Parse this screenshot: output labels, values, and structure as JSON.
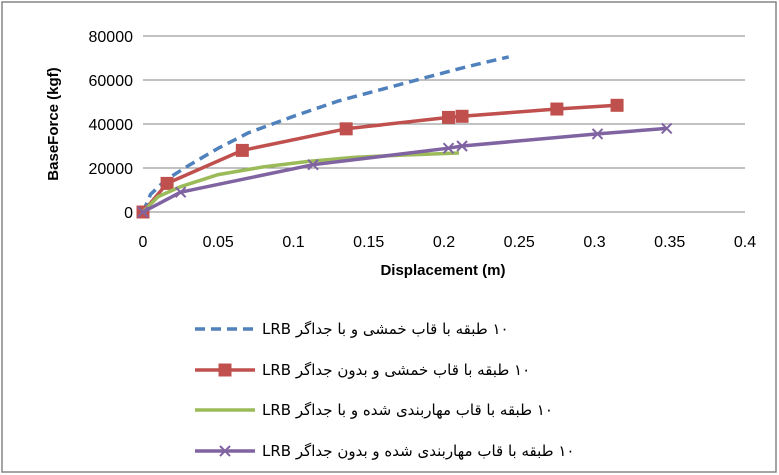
{
  "chart_data": {
    "type": "line",
    "xlabel": "Displacement (m)",
    "ylabel": "BaseForce (kgf)",
    "xlim": [
      0,
      0.4
    ],
    "ylim": [
      0,
      80000
    ],
    "xticks": [
      0,
      0.05,
      0.1,
      0.15,
      0.2,
      0.25,
      0.3,
      0.35,
      0.4
    ],
    "yticks": [
      0,
      20000,
      40000,
      60000,
      80000
    ],
    "x_tick_labels": [
      "0",
      "0.05",
      "0.1",
      "0.15",
      "0.2",
      "0.25",
      "0.3",
      "0.35",
      "0.4"
    ],
    "y_tick_labels": [
      "0",
      "20000",
      "40000",
      "60000",
      "80000"
    ],
    "grid": "horizontal",
    "legend_position": "bottom",
    "series": [
      {
        "name": "۱۰ طبقه با قاب خمشی و با جداگر LRB",
        "color": "#4F81BD",
        "style": "dashed",
        "marker": "none",
        "points": [
          [
            0,
            0
          ],
          [
            0.005,
            8000
          ],
          [
            0.015,
            14500
          ],
          [
            0.03,
            21000
          ],
          [
            0.05,
            29000
          ],
          [
            0.07,
            36000
          ],
          [
            0.1,
            43500
          ],
          [
            0.13,
            50500
          ],
          [
            0.16,
            56000
          ],
          [
            0.19,
            61500
          ],
          [
            0.215,
            66000
          ],
          [
            0.243,
            70500
          ]
        ]
      },
      {
        "name": "۱۰ طبقه با قاب خمشی و بدون جداگر LRB",
        "color": "#C0504D",
        "style": "solid",
        "marker": "square",
        "points": [
          [
            0,
            0
          ],
          [
            0.016,
            13000
          ],
          [
            0.066,
            28000
          ],
          [
            0.135,
            37800
          ],
          [
            0.203,
            43000
          ],
          [
            0.212,
            43500
          ],
          [
            0.275,
            46800
          ],
          [
            0.315,
            48500
          ]
        ]
      },
      {
        "name": "۱۰ طبقه با قاب مهاربندی شده و با جداگر LRB",
        "color": "#9BBB59",
        "style": "solid",
        "marker": "none",
        "points": [
          [
            0,
            0
          ],
          [
            0.01,
            7000
          ],
          [
            0.025,
            11500
          ],
          [
            0.05,
            17000
          ],
          [
            0.08,
            20500
          ],
          [
            0.11,
            23000
          ],
          [
            0.14,
            24800
          ],
          [
            0.17,
            25800
          ],
          [
            0.21,
            26800
          ]
        ]
      },
      {
        "name": "۱۰ طبقه با قاب مهاربندی شده و بدون جداگر LRB",
        "color": "#8064A2",
        "style": "solid",
        "marker": "x",
        "points": [
          [
            0,
            0
          ],
          [
            0.025,
            9000
          ],
          [
            0.113,
            21500
          ],
          [
            0.203,
            29000
          ],
          [
            0.212,
            30000
          ],
          [
            0.302,
            35500
          ],
          [
            0.348,
            38000
          ]
        ]
      }
    ]
  }
}
